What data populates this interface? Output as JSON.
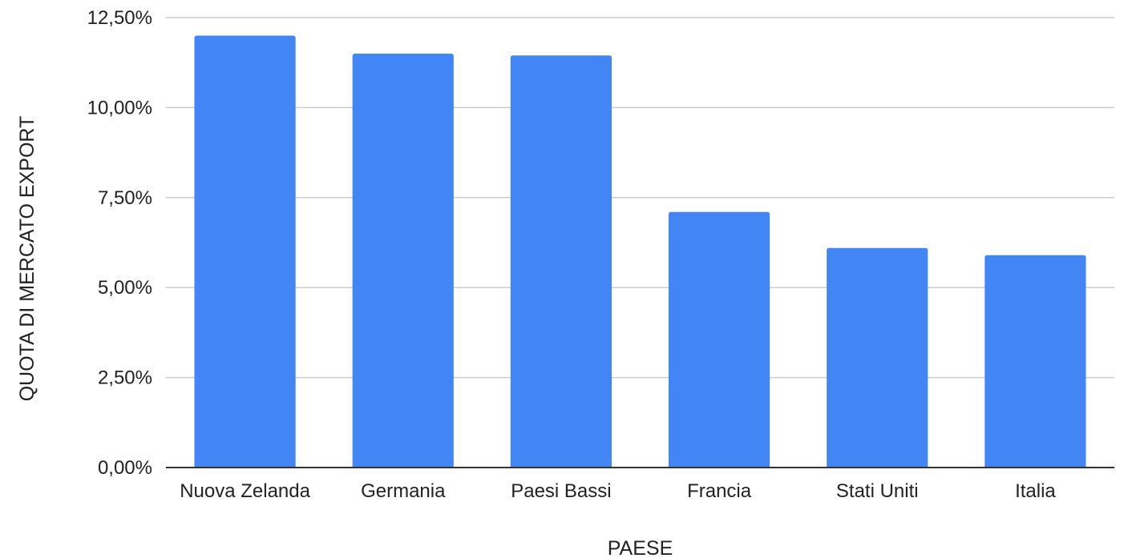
{
  "chart_data": {
    "type": "bar",
    "title": "",
    "xlabel": "PAESE",
    "ylabel": "QUOTA DI MERCATO EXPORT",
    "categories": [
      "Nuova Zelanda",
      "Germania",
      "Paesi Bassi",
      "Francia",
      "Stati Uniti",
      "Italia"
    ],
    "values": [
      12.0,
      11.5,
      11.45,
      7.1,
      6.1,
      5.9
    ],
    "ylim": [
      0,
      12.5
    ],
    "yticks": [
      0,
      2.5,
      5,
      7.5,
      10,
      12.5
    ],
    "ytick_labels": [
      "0,00%",
      "2,50%",
      "5,00%",
      "7,50%",
      "10,00%",
      "12,50%"
    ],
    "grid": true,
    "legend": "none",
    "bar_color": "#4285f4",
    "grid_color": "#cccccc",
    "axis_color": "#333333",
    "text_color": "#222222"
  }
}
